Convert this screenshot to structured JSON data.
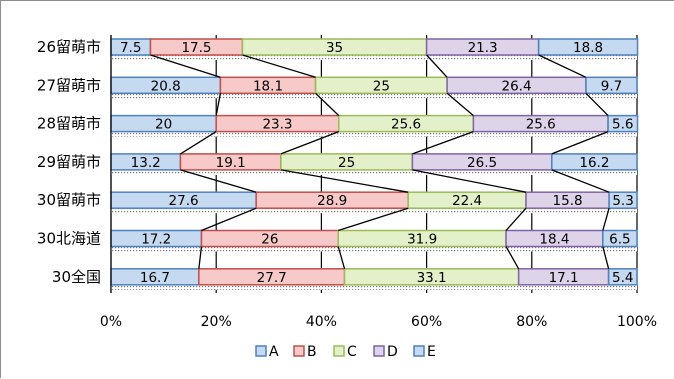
{
  "chart_data": {
    "type": "bar",
    "orientation": "horizontal",
    "stacked": "percent",
    "categories": [
      "26留萌市",
      "27留萌市",
      "28留萌市",
      "29留萌市",
      "30留萌市",
      "30北海道",
      "30全国"
    ],
    "series": [
      {
        "name": "A",
        "values": [
          7.5,
          20.8,
          20,
          13.2,
          27.6,
          17.2,
          16.7
        ],
        "color": "#c5d9f1",
        "border": "#4f81bd"
      },
      {
        "name": "B",
        "values": [
          17.5,
          18.1,
          23.3,
          19.1,
          28.9,
          26,
          27.7
        ],
        "color": "#f7c9c9",
        "border": "#c0504d"
      },
      {
        "name": "C",
        "values": [
          35,
          25,
          25.6,
          25,
          22.4,
          31.9,
          33.1
        ],
        "color": "#e4f0c9",
        "border": "#9bbb59"
      },
      {
        "name": "D",
        "values": [
          21.3,
          26.4,
          25.6,
          26.5,
          15.8,
          18.4,
          17.1
        ],
        "color": "#ddd4ea",
        "border": "#8064a2"
      },
      {
        "name": "E",
        "values": [
          18.8,
          9.7,
          5.6,
          16.2,
          5.3,
          6.5,
          5.4
        ],
        "color": "#c5d9f1",
        "border": "#4f81bd"
      }
    ],
    "value_labels": [
      [
        "7.5",
        "17.5",
        "35",
        "21.3",
        "18.8"
      ],
      [
        "20.8",
        "18.1",
        "25",
        "26.4",
        "9.7"
      ],
      [
        "20",
        "23.3",
        "25.6",
        "25.6",
        "5.6"
      ],
      [
        "13.2",
        "19.1",
        "25",
        "26.5",
        "16.2"
      ],
      [
        "27.6",
        "28.9",
        "22.4",
        "15.8",
        "5.3"
      ],
      [
        "17.2",
        "26",
        "31.9",
        "18.4",
        "6.5"
      ],
      [
        "16.7",
        "27.7",
        "33.1",
        "17.1",
        "5.4"
      ]
    ],
    "xlim": [
      0,
      100
    ],
    "x_ticks": [
      "0%",
      "20%",
      "40%",
      "60%",
      "80%",
      "100%"
    ],
    "grid": true,
    "series_lines": true,
    "legend": "bottom",
    "title": "",
    "xlabel": "",
    "ylabel": ""
  }
}
